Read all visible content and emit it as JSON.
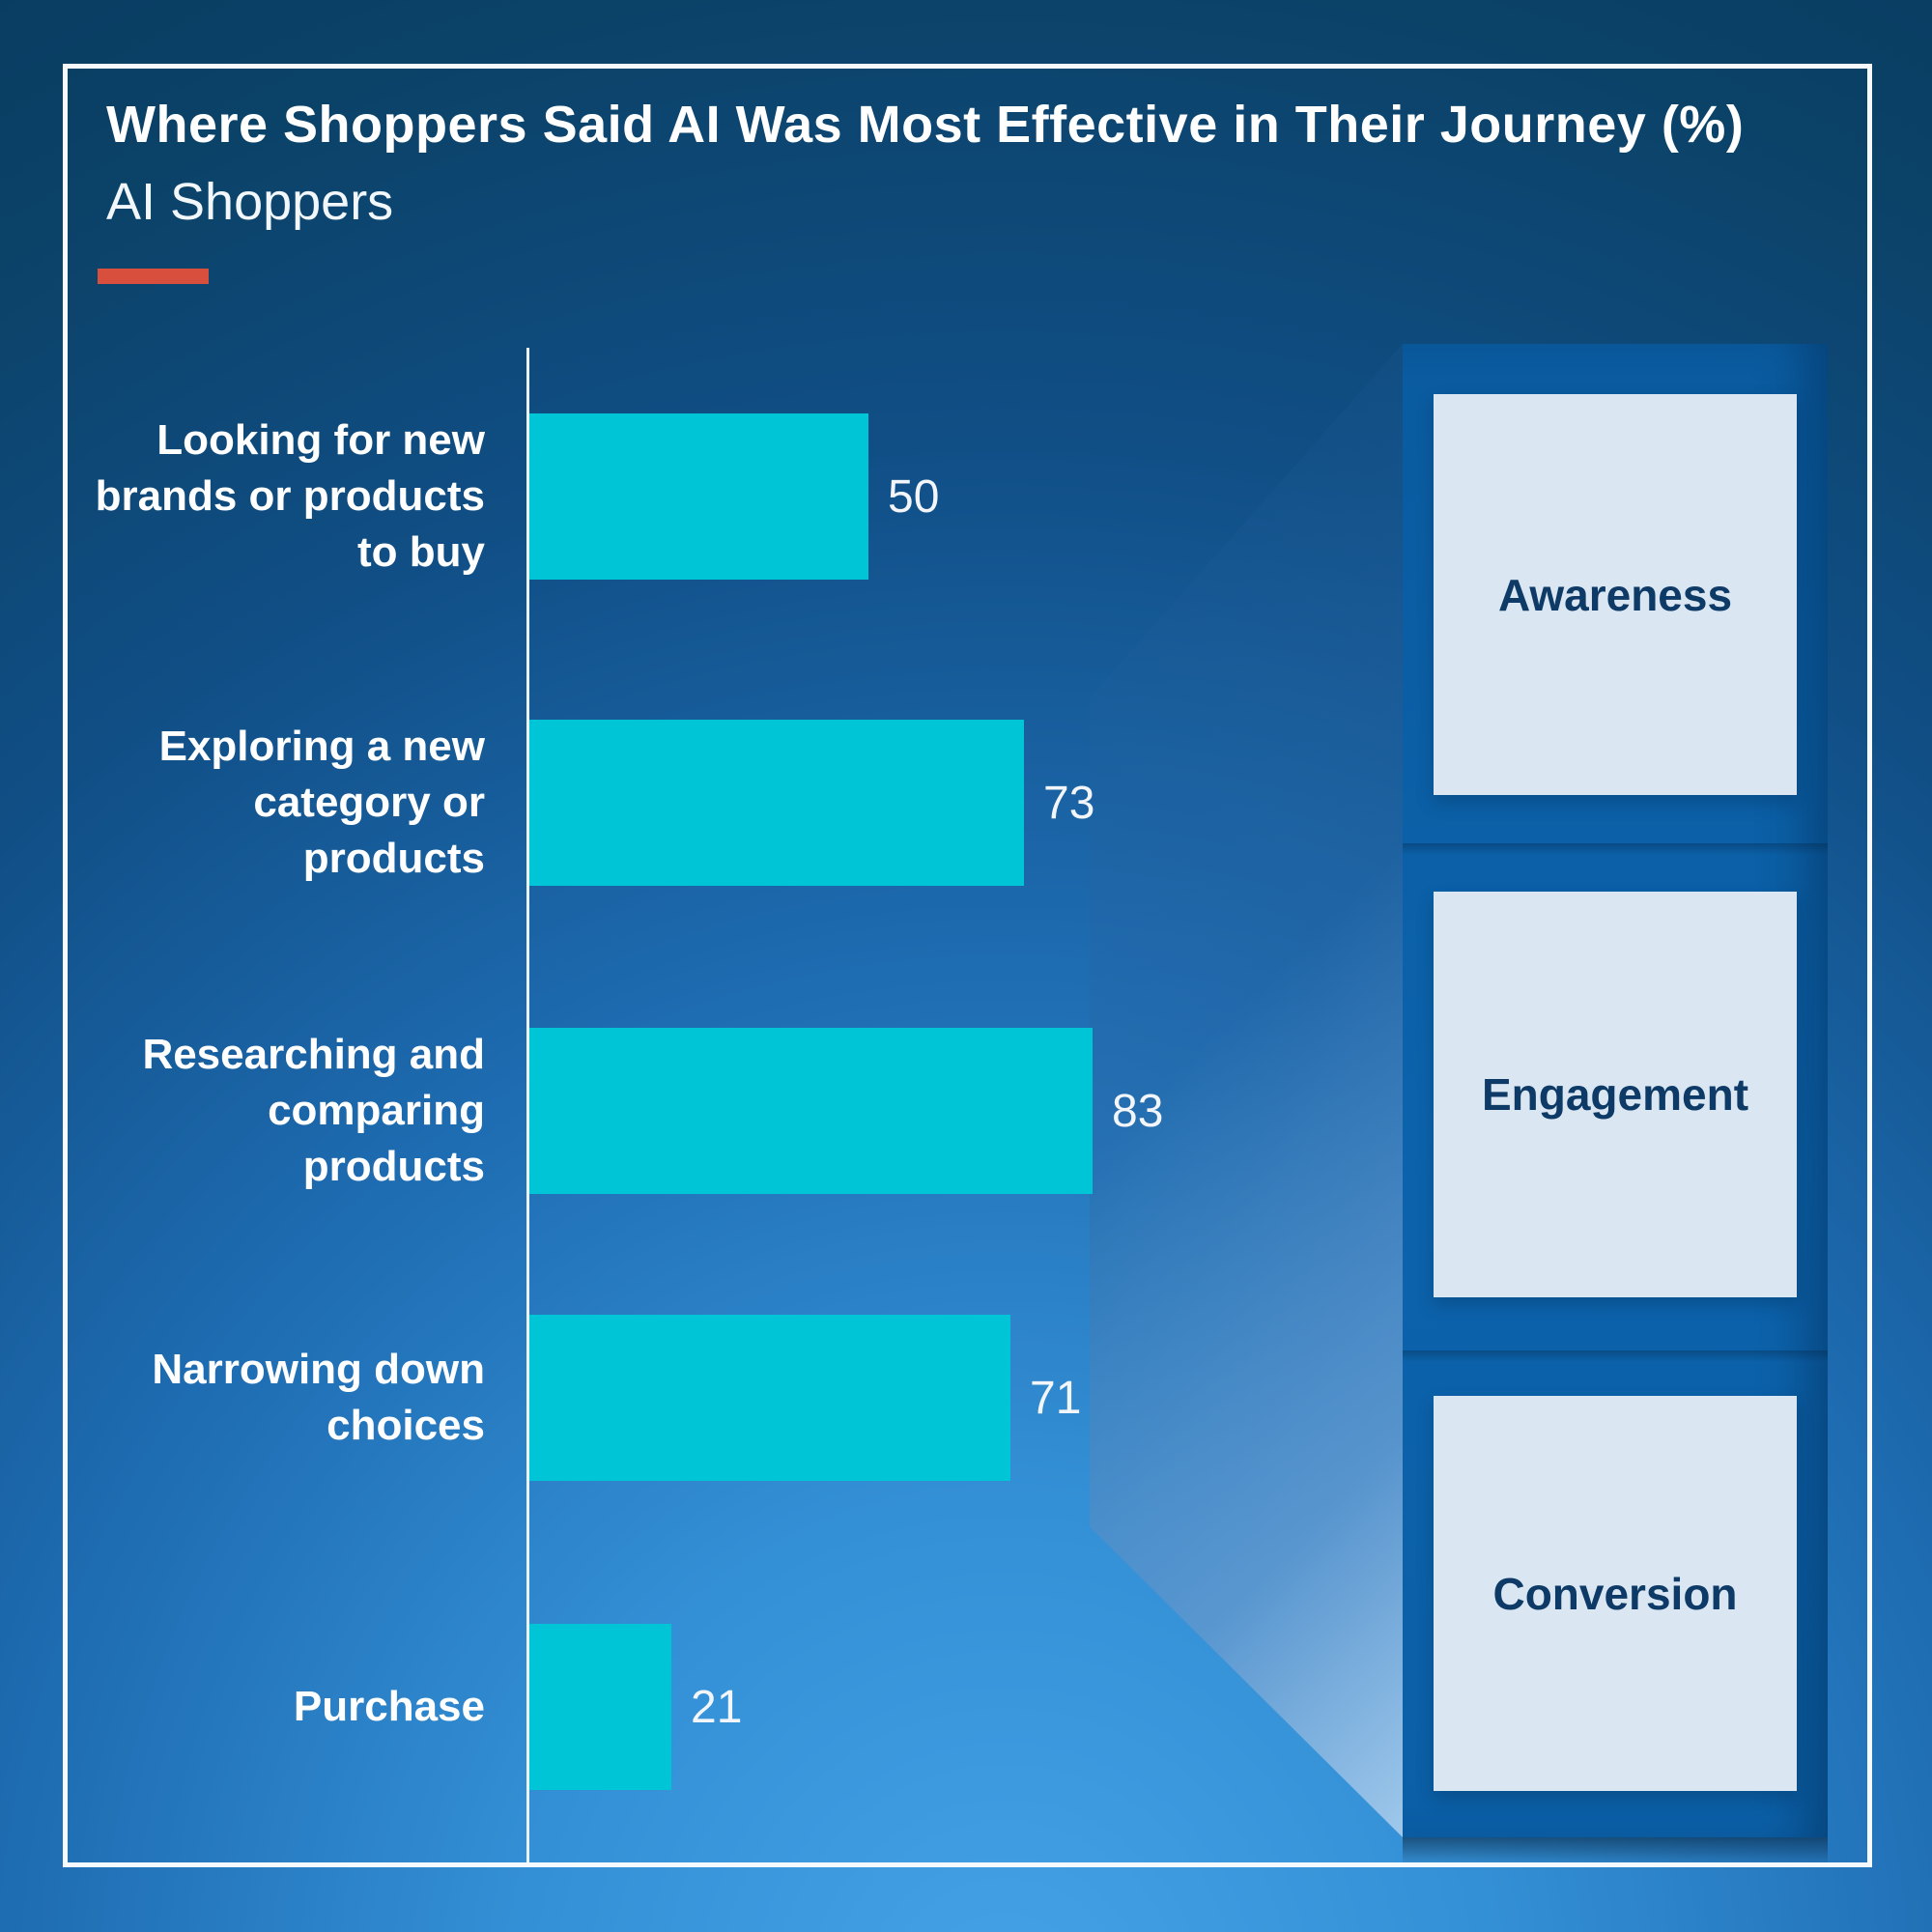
{
  "header": {
    "title": "Where Shoppers Said AI Was Most Effective in Their Journey (%)",
    "subtitle": "AI Shoppers"
  },
  "colors": {
    "accent_red": "#d94f3e",
    "bar_cyan": "#00c5d7",
    "background_dark": "#0a3c60",
    "background_light": "#46a2e6",
    "panel_blue": "#0b60a8",
    "stage_box_bg": "#dae6f1",
    "stage_text": "#0d3a66",
    "text_white": "#ffffff"
  },
  "chart_data": {
    "type": "bar",
    "orientation": "horizontal",
    "title": "Where Shoppers Said AI Was Most Effective in Their Journey (%)",
    "series_name": "AI Shoppers",
    "categories": [
      "Looking for new\nbrands or products\nto buy",
      "Exploring a new\ncategory or products",
      "Researching and\ncomparing products",
      "Narrowing down\nchoices",
      "Purchase"
    ],
    "values": [
      50,
      73,
      83,
      71,
      21
    ],
    "value_labels": [
      "50",
      "73",
      "83",
      "71",
      "21"
    ],
    "xlim": [
      0,
      100
    ],
    "grid": false,
    "axis_line": true,
    "bar_color": "#00c5d7",
    "legend_position": "none"
  },
  "stages": [
    {
      "label": "Awareness"
    },
    {
      "label": "Engagement"
    },
    {
      "label": "Conversion"
    }
  ]
}
